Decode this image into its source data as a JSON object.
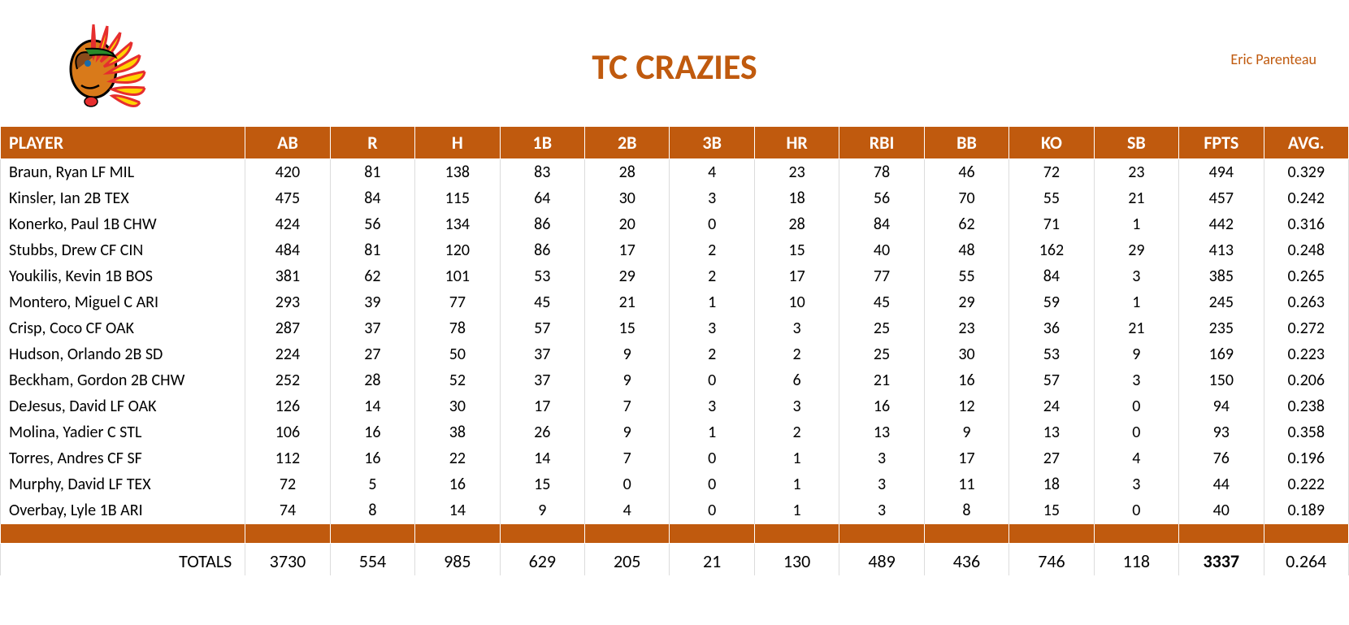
{
  "header": {
    "title": "TC CRAZIES",
    "owner": "Eric Parenteau",
    "title_color": "#c05a0e",
    "owner_color": "#c05a0e"
  },
  "styling": {
    "header_bg": "#c05a0e",
    "header_text": "#ffffff",
    "cell_border": "#dcdcdc",
    "body_bg": "#ffffff",
    "title_fontsize": 44,
    "header_fontsize": 22,
    "cell_fontsize": 20
  },
  "table": {
    "type": "table",
    "columns": [
      "PLAYER",
      "AB",
      "R",
      "H",
      "1B",
      "2B",
      "3B",
      "HR",
      "RBI",
      "BB",
      "KO",
      "SB",
      "FPTS",
      "AVG."
    ],
    "rows": [
      [
        "Braun, Ryan LF MIL",
        "420",
        "81",
        "138",
        "83",
        "28",
        "4",
        "23",
        "78",
        "46",
        "72",
        "23",
        "494",
        "0.329"
      ],
      [
        "Kinsler, Ian 2B TEX",
        "475",
        "84",
        "115",
        "64",
        "30",
        "3",
        "18",
        "56",
        "70",
        "55",
        "21",
        "457",
        "0.242"
      ],
      [
        "Konerko, Paul 1B CHW",
        "424",
        "56",
        "134",
        "86",
        "20",
        "0",
        "28",
        "84",
        "62",
        "71",
        "1",
        "442",
        "0.316"
      ],
      [
        "Stubbs, Drew CF CIN",
        "484",
        "81",
        "120",
        "86",
        "17",
        "2",
        "15",
        "40",
        "48",
        "162",
        "29",
        "413",
        "0.248"
      ],
      [
        "Youkilis, Kevin 1B BOS",
        "381",
        "62",
        "101",
        "53",
        "29",
        "2",
        "17",
        "77",
        "55",
        "84",
        "3",
        "385",
        "0.265"
      ],
      [
        "Montero, Miguel C ARI",
        "293",
        "39",
        "77",
        "45",
        "21",
        "1",
        "10",
        "45",
        "29",
        "59",
        "1",
        "245",
        "0.263"
      ],
      [
        "Crisp, Coco CF OAK",
        "287",
        "37",
        "78",
        "57",
        "15",
        "3",
        "3",
        "25",
        "23",
        "36",
        "21",
        "235",
        "0.272"
      ],
      [
        "Hudson, Orlando 2B SD",
        "224",
        "27",
        "50",
        "37",
        "9",
        "2",
        "2",
        "25",
        "30",
        "53",
        "9",
        "169",
        "0.223"
      ],
      [
        "Beckham, Gordon 2B CHW",
        "252",
        "28",
        "52",
        "37",
        "9",
        "0",
        "6",
        "21",
        "16",
        "57",
        "3",
        "150",
        "0.206"
      ],
      [
        "DeJesus, David LF OAK",
        "126",
        "14",
        "30",
        "17",
        "7",
        "3",
        "3",
        "16",
        "12",
        "24",
        "0",
        "94",
        "0.238"
      ],
      [
        "Molina, Yadier C STL",
        "106",
        "16",
        "38",
        "26",
        "9",
        "1",
        "2",
        "13",
        "9",
        "13",
        "0",
        "93",
        "0.358"
      ],
      [
        "Torres, Andres CF SF",
        "112",
        "16",
        "22",
        "14",
        "7",
        "0",
        "1",
        "3",
        "17",
        "27",
        "4",
        "76",
        "0.196"
      ],
      [
        "Murphy, David LF TEX",
        "72",
        "5",
        "16",
        "15",
        "0",
        "0",
        "1",
        "3",
        "11",
        "18",
        "3",
        "44",
        "0.222"
      ],
      [
        "Overbay, Lyle 1B ARI",
        "74",
        "8",
        "14",
        "9",
        "4",
        "0",
        "1",
        "3",
        "8",
        "15",
        "0",
        "40",
        "0.189"
      ]
    ],
    "totals_label": "TOTALS",
    "totals": [
      "3730",
      "554",
      "985",
      "629",
      "205",
      "21",
      "130",
      "489",
      "436",
      "746",
      "118",
      "3337",
      "0.264"
    ],
    "bold_total_index": 11
  }
}
